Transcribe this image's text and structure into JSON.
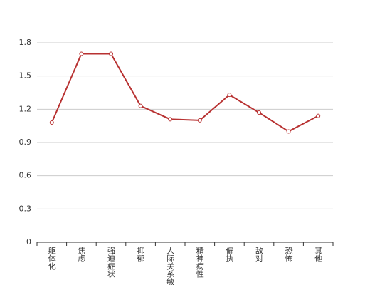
{
  "chart_data": {
    "type": "line",
    "categories": [
      "躯体化",
      "焦虑",
      "强迫症状",
      "抑郁",
      "人际关系敏感",
      "精神病性",
      "偏执",
      "敌对",
      "恐怖",
      "其他"
    ],
    "values": [
      1.08,
      1.7,
      1.7,
      1.23,
      1.11,
      1.1,
      1.33,
      1.17,
      1.0,
      1.14
    ],
    "color": "#b83232",
    "ylim": [
      0,
      1.8
    ],
    "yticks": [
      0,
      0.3,
      0.6,
      0.9,
      1.2,
      1.5,
      1.8
    ],
    "grid": true
  }
}
